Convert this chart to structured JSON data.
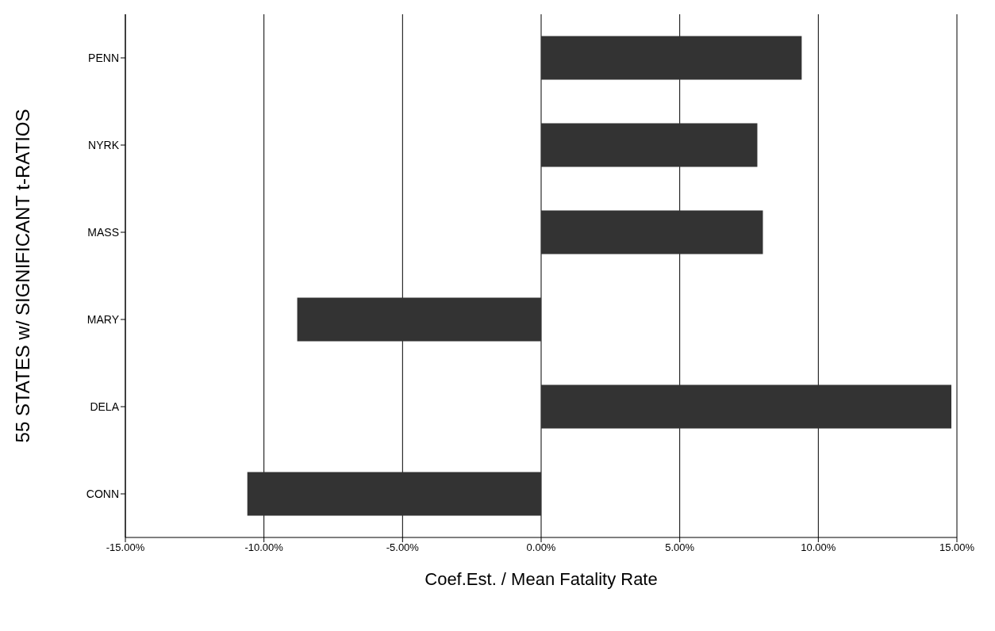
{
  "chart_data": {
    "type": "bar",
    "orientation": "horizontal",
    "xlabel": "Coef.Est.  /  Mean Fatality Rate",
    "ylabel": "55 STATES w/ SIGNIFICANT t-RATIOS",
    "categories": [
      "PENN",
      "NYRK",
      "MASS",
      "MARY",
      "DELA",
      "CONN"
    ],
    "values": [
      9.4,
      7.8,
      8.0,
      -8.8,
      14.8,
      -10.6
    ],
    "color": "#333333",
    "xlim": [
      -15,
      15
    ],
    "xticks": [
      {
        "value": -15,
        "label": "-15.00%"
      },
      {
        "value": -10,
        "label": "-10.00%"
      },
      {
        "value": -5,
        "label": "-5.00%"
      },
      {
        "value": 0,
        "label": "0.00%"
      },
      {
        "value": 5,
        "label": "5.00%"
      },
      {
        "value": 10,
        "label": "10.00%"
      },
      {
        "value": 15,
        "label": "15.00%"
      }
    ],
    "grid": "x"
  }
}
